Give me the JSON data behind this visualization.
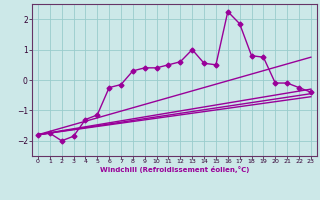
{
  "background_color": "#cce8e8",
  "grid_color": "#99cccc",
  "line_color": "#990099",
  "marker": "D",
  "markersize": 2.5,
  "linewidth": 1.0,
  "xlim": [
    -0.5,
    23.5
  ],
  "ylim": [
    -2.5,
    2.5
  ],
  "yticks": [
    -2,
    -1,
    0,
    1,
    2
  ],
  "xticks": [
    0,
    1,
    2,
    3,
    4,
    5,
    6,
    7,
    8,
    9,
    10,
    11,
    12,
    13,
    14,
    15,
    16,
    17,
    18,
    19,
    20,
    21,
    22,
    23
  ],
  "xlabel": "Windchill (Refroidissement éolien,°C)",
  "line1_x": [
    0,
    1,
    2,
    3,
    4,
    5,
    6,
    7,
    8,
    9,
    10,
    11,
    12,
    13,
    14,
    15,
    16,
    17,
    18,
    19,
    20,
    21,
    22,
    23
  ],
  "line1_y": [
    -1.8,
    -1.75,
    -2.0,
    -1.85,
    -1.3,
    -1.15,
    -0.25,
    -0.15,
    0.3,
    0.4,
    0.4,
    0.5,
    0.6,
    1.0,
    0.55,
    0.5,
    2.25,
    1.85,
    0.8,
    0.75,
    -0.1,
    -0.1,
    -0.25,
    -0.4
  ],
  "line2_x": [
    0,
    23
  ],
  "line2_y": [
    -1.8,
    0.75
  ],
  "line3_x": [
    0,
    23
  ],
  "line3_y": [
    -1.8,
    -0.3
  ],
  "line4_x": [
    0,
    23
  ],
  "line4_y": [
    -1.8,
    -0.45
  ],
  "line5_x": [
    0,
    23
  ],
  "line5_y": [
    -1.8,
    -0.55
  ]
}
